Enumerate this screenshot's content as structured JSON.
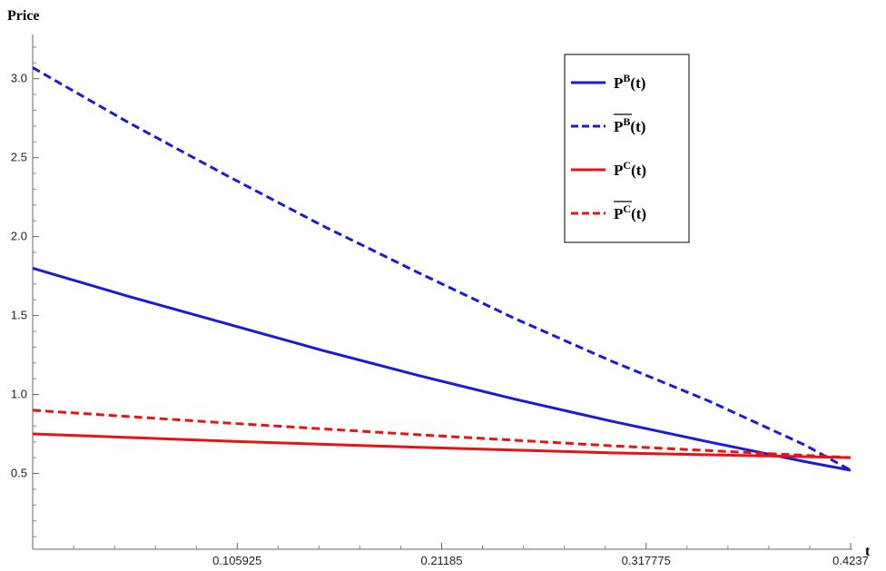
{
  "chart_data": {
    "type": "line",
    "ylabel": "Price",
    "xlabel": "t",
    "xlim": [
      0,
      0.4237
    ],
    "ylim": [
      0.02,
      3.28
    ],
    "x_ticks": [
      0.105925,
      0.21185,
      0.317775,
      0.4237
    ],
    "x_tick_labels": [
      "0.105925",
      "0.21185",
      "0.317775",
      "0.4237"
    ],
    "y_ticks": [
      0.5,
      1.0,
      1.5,
      2.0,
      2.5,
      3.0
    ],
    "y_tick_labels": [
      "0.5",
      "1.0",
      "1.5",
      "2.0",
      "2.5",
      "3.0"
    ],
    "grid": false,
    "legend_position": "top-right",
    "series": [
      {
        "legend": {
          "base": "P",
          "sup": "B",
          "arg": "(t)",
          "overline": false
        },
        "color": "#1a1adb",
        "style": "solid",
        "x": [
          0,
          0.05,
          0.1,
          0.15,
          0.2,
          0.25,
          0.3,
          0.35,
          0.4,
          0.4237
        ],
        "y": [
          1.8,
          1.62,
          1.45,
          1.28,
          1.12,
          0.97,
          0.83,
          0.7,
          0.575,
          0.52
        ]
      },
      {
        "legend": {
          "base": "P",
          "sup": "B",
          "arg": "(t)",
          "overline": true
        },
        "color": "#1a1adb",
        "style": "dashed",
        "x": [
          0,
          0.05,
          0.1,
          0.15,
          0.2,
          0.25,
          0.3,
          0.35,
          0.4,
          0.4237
        ],
        "y": [
          3.07,
          2.72,
          2.39,
          2.07,
          1.77,
          1.48,
          1.21,
          0.96,
          0.68,
          0.52
        ]
      },
      {
        "legend": {
          "base": "P",
          "sup": "C",
          "arg": "(t)",
          "overline": false
        },
        "color": "#e81414",
        "style": "solid",
        "x": [
          0,
          0.1,
          0.2,
          0.3,
          0.4237
        ],
        "y": [
          0.75,
          0.705,
          0.665,
          0.63,
          0.6
        ]
      },
      {
        "legend": {
          "base": "P",
          "sup": "C",
          "arg": "(t)",
          "overline": true
        },
        "color": "#e81414",
        "style": "dashed",
        "x": [
          0,
          0.1,
          0.2,
          0.3,
          0.4237
        ],
        "y": [
          0.9,
          0.82,
          0.745,
          0.675,
          0.6
        ]
      }
    ]
  }
}
